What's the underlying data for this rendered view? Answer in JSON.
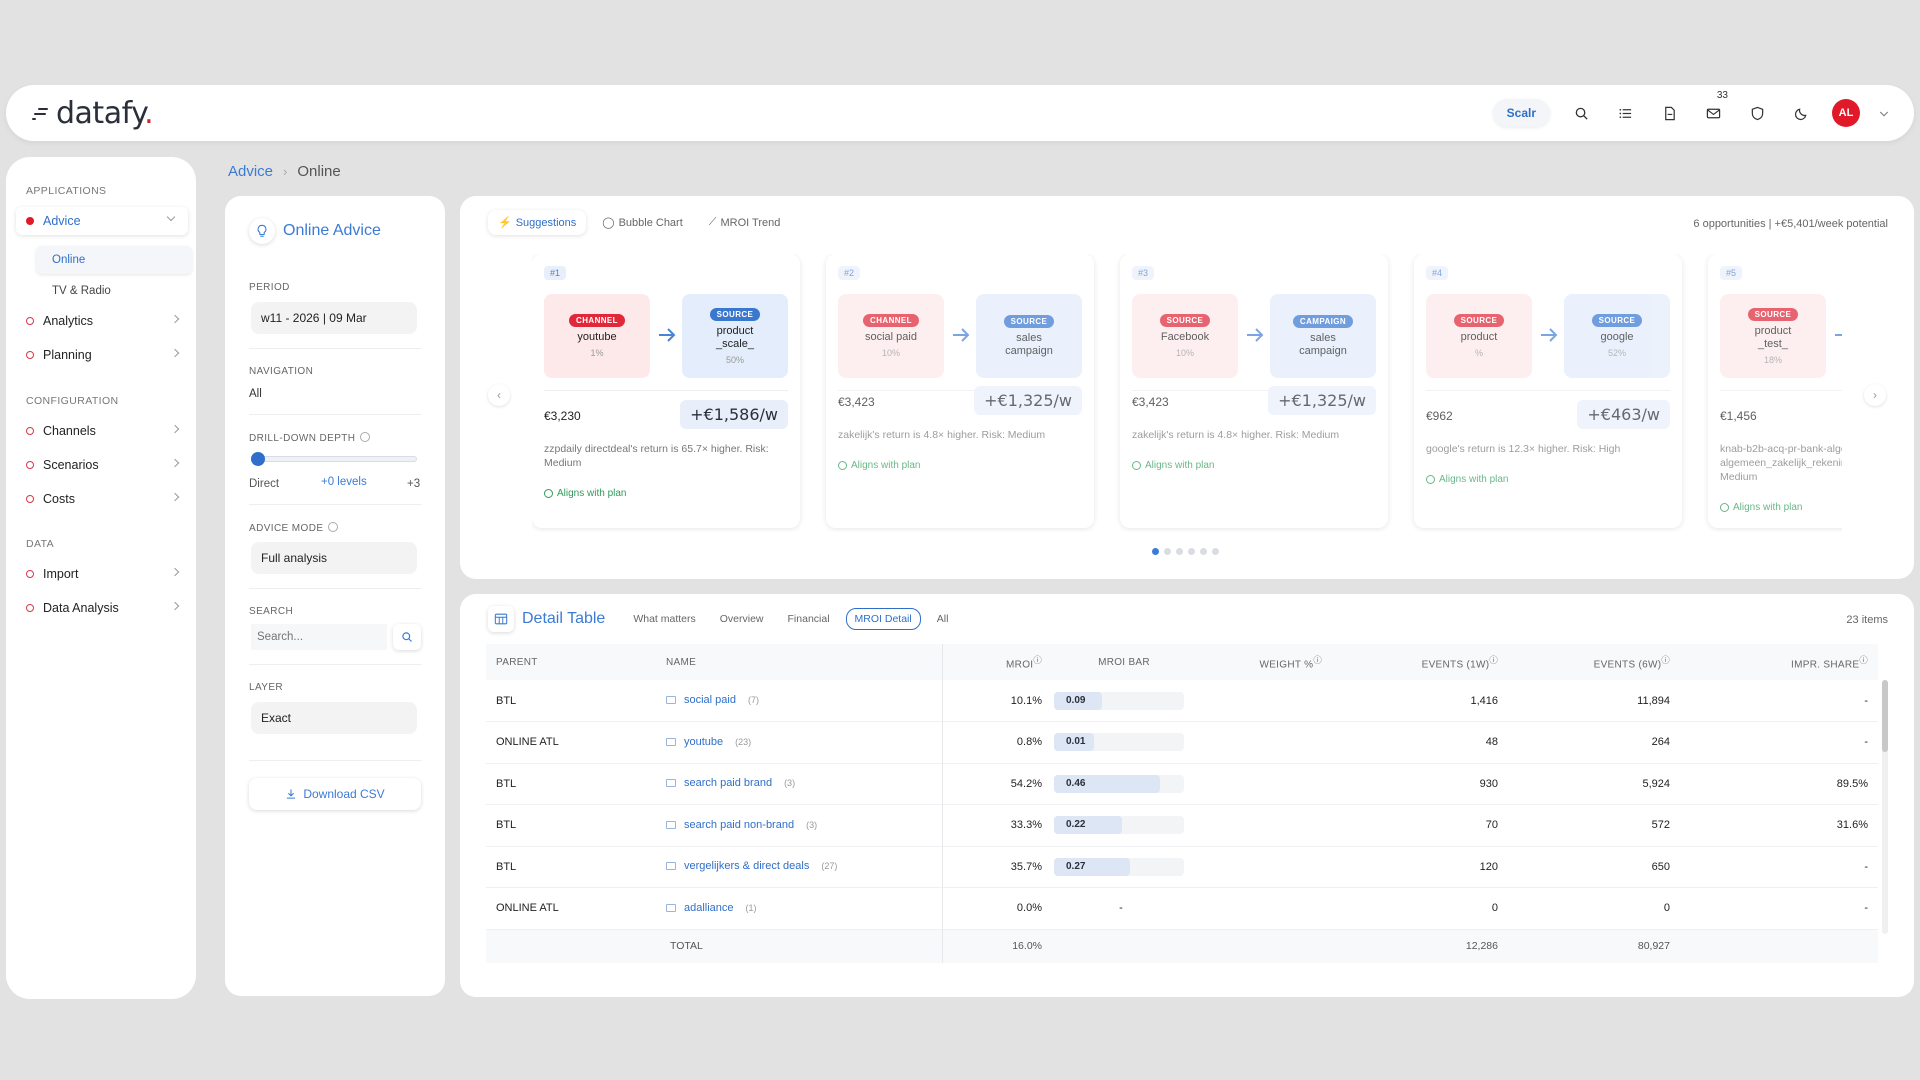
{
  "header": {
    "logo": "datafy",
    "scalr_label": "Scalr",
    "mail_count": "33",
    "avatar_initials": "AL",
    "icons": [
      "search-icon",
      "list-icon",
      "document-icon",
      "mail-icon",
      "shield-icon",
      "moon-icon",
      "chevron-down-icon"
    ]
  },
  "sidebar": {
    "applications_label": "APPLICATIONS",
    "advice": "Advice",
    "online": "Online",
    "tv_radio": "TV & Radio",
    "analytics": "Analytics",
    "planning": "Planning",
    "configuration_label": "CONFIGURATION",
    "channels": "Channels",
    "scenarios": "Scenarios",
    "costs": "Costs",
    "data_label": "DATA",
    "import": "Import",
    "data_analysis": "Data Analysis"
  },
  "breadcrumb": {
    "root": "Advice",
    "current": "Online"
  },
  "panel": {
    "title": "Online Advice",
    "period_label": "PERIOD",
    "period_value": "w11 - 2026 | 09 Mar",
    "navigation_label": "NAVIGATION",
    "navigation_value": "All",
    "depth_label": "DRILL-DOWN DEPTH",
    "depth_min": "Direct",
    "depth_value": "+0 levels",
    "depth_max": "+3",
    "mode_label": "ADVICE MODE",
    "mode_value": "Full analysis",
    "search_label": "SEARCH",
    "search_placeholder": "Search...",
    "layer_label": "LAYER",
    "layer_value": "Exact",
    "download_label": "Download CSV"
  },
  "suggestions": {
    "tabs": [
      "Suggestions",
      "Bubble Chart",
      "MROI Trend"
    ],
    "summary": "6 opportunities | +€5,401/week potential",
    "cards": [
      {
        "rank": "#1",
        "from_tag": "CHANNEL",
        "from_name": "youtube",
        "from_pct": "1%",
        "to_tag": "SOURCE",
        "to_name": "product\n_scale_",
        "to_pct": "50%",
        "cost": "€3,230",
        "gain": "+€1,586/w",
        "reason": "zzpdaily directdeal's return is 65.7× higher. Risk: Medium",
        "aligns": "Aligns with plan"
      },
      {
        "rank": "#2",
        "from_tag": "CHANNEL",
        "from_name": "social paid",
        "from_pct": "10%",
        "to_tag": "SOURCE",
        "to_name": "sales\ncampaign",
        "to_pct": "",
        "cost": "€3,423",
        "gain": "+€1,325/w",
        "reason": "zakelijk's return is 4.8× higher. Risk: Medium",
        "aligns": "Aligns with plan"
      },
      {
        "rank": "#3",
        "from_tag": "SOURCE",
        "from_name": "Facebook",
        "from_pct": "10%",
        "to_tag": "CAMPAIGN",
        "to_name": "sales\ncampaign",
        "to_pct": "",
        "cost": "€3,423",
        "gain": "+€1,325/w",
        "reason": "zakelijk's return is 4.8× higher. Risk: Medium",
        "aligns": "Aligns with plan"
      },
      {
        "rank": "#4",
        "from_tag": "SOURCE",
        "from_name": "product",
        "from_pct": "%",
        "to_tag": "SOURCE",
        "to_name": "google",
        "to_pct": "52%",
        "cost": "€962",
        "gain": "+€463/w",
        "reason": "google's return is 12.3× higher. Risk: High",
        "aligns": "Aligns with plan"
      },
      {
        "rank": "#5",
        "from_tag": "SOURCE",
        "from_name": "product\n_test_",
        "from_pct": "18%",
        "to_tag": "",
        "to_name": "",
        "to_pct": "",
        "cost": "€1,456",
        "gain": "",
        "reason": "knab-b2b-acq-pr-bank-alge algemeen_zakelijk_rekening- 2.7× higher. Risk: Medium",
        "aligns": "Aligns with plan"
      }
    ]
  },
  "detail": {
    "title": "Detail Table",
    "tabs": [
      "What matters",
      "Overview",
      "Financial",
      "MROI Detail",
      "All"
    ],
    "items": "23 items",
    "columns": [
      "PARENT",
      "NAME",
      "MROI",
      "MROI BAR",
      "WEIGHT %",
      "EVENTS (1W)",
      "EVENTS (6W)",
      "IMPR. SHARE"
    ],
    "rows": [
      {
        "parent": "BTL",
        "name": "social paid",
        "count": "(7)",
        "mroi": "10.1%",
        "bar": "0.09",
        "bar_fill": 0.09,
        "weight": "",
        "e1": "1,416",
        "e6": "11,894",
        "impr": "-"
      },
      {
        "parent": "ONLINE ATL",
        "name": "youtube",
        "count": "(23)",
        "mroi": "0.8%",
        "bar": "0.01",
        "bar_fill": 0.01,
        "weight": "",
        "e1": "48",
        "e6": "264",
        "impr": "-"
      },
      {
        "parent": "BTL",
        "name": "search paid brand",
        "count": "(3)",
        "mroi": "54.2%",
        "bar": "0.46",
        "bar_fill": 0.46,
        "weight": "",
        "e1": "930",
        "e6": "5,924",
        "impr": "89.5%"
      },
      {
        "parent": "BTL",
        "name": "search paid non-brand",
        "count": "(3)",
        "mroi": "33.3%",
        "bar": "0.22",
        "bar_fill": 0.22,
        "weight": "",
        "e1": "70",
        "e6": "572",
        "impr": "31.6%"
      },
      {
        "parent": "BTL",
        "name": "vergelijkers & direct deals",
        "count": "(27)",
        "mroi": "35.7%",
        "bar": "0.27",
        "bar_fill": 0.27,
        "weight": "",
        "e1": "120",
        "e6": "650",
        "impr": "-"
      },
      {
        "parent": "ONLINE ATL",
        "name": "adalliance",
        "count": "(1)",
        "mroi": "0.0%",
        "bar": "-",
        "bar_fill": 0,
        "weight": "",
        "e1": "0",
        "e6": "0",
        "impr": "-"
      }
    ],
    "total": {
      "label": "TOTAL",
      "mroi": "16.0%",
      "e1": "12,286",
      "e6": "80,927"
    }
  }
}
